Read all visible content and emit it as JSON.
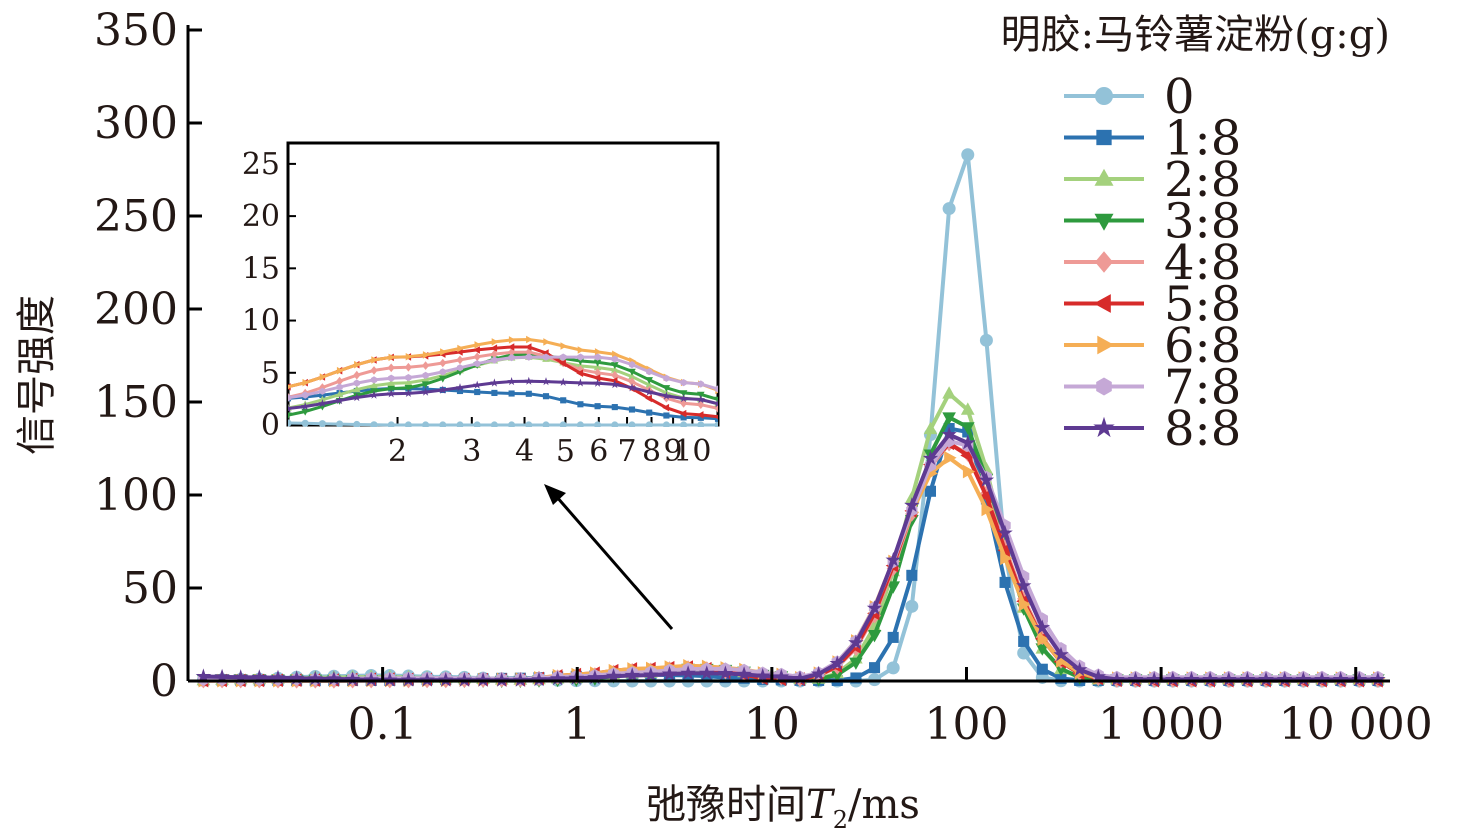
{
  "chart_data": {
    "type": "line",
    "xlabel": {
      "main": "弛豫时间",
      "var": "T",
      "sub": "2",
      "unit": "/ms"
    },
    "ylabel": "信号强度",
    "x_scale": "log",
    "xlim": [
      0.01,
      15000
    ],
    "ylim": [
      0,
      350
    ],
    "x_ticks": [
      {
        "v": 0.1,
        "label": "0.1"
      },
      {
        "v": 1,
        "label": "1"
      },
      {
        "v": 10,
        "label": "10"
      },
      {
        "v": 100,
        "label": "100"
      },
      {
        "v": 1000,
        "label": "1 000"
      },
      {
        "v": 10000,
        "label": "10 000"
      }
    ],
    "y_ticks": [
      {
        "v": 0,
        "label": "0"
      },
      {
        "v": 50,
        "label": "50"
      },
      {
        "v": 100,
        "label": "100"
      },
      {
        "v": 150,
        "label": "150"
      },
      {
        "v": 200,
        "label": "200"
      },
      {
        "v": 250,
        "label": "250"
      },
      {
        "v": 300,
        "label": "300"
      },
      {
        "v": 350,
        "label": "350"
      }
    ],
    "legend_title": "明胶:马铃薯淀粉(g:g)",
    "legend_position": "top-right",
    "series": [
      {
        "name": "0",
        "color": "#93c2d8",
        "marker": "circle",
        "small": [
          0.3,
          0.9,
          2.5,
          3.0,
          2.2,
          1.0,
          0.2,
          0,
          0,
          0,
          0,
          0
        ],
        "peak_x": 95,
        "peak_y": 290,
        "width": 0.13
      },
      {
        "name": "1:8",
        "color": "#2c72b0",
        "marker": "square",
        "small": [
          0.5,
          0.4,
          0.2,
          0.3,
          0.8,
          1.5,
          2.5,
          3.5,
          3.0,
          1.8,
          0.7,
          0.3
        ],
        "peak_x": 90,
        "peak_y": 140,
        "width": 0.175
      },
      {
        "name": "2:8",
        "color": "#a4d17d",
        "marker": "triangle-up",
        "small": [
          0.3,
          0.8,
          1.8,
          2.2,
          1.5,
          0.6,
          1.5,
          4.0,
          6.5,
          5.5,
          2.5,
          0.8
        ],
        "peak_x": 85,
        "peak_y": 155,
        "width": 0.22
      },
      {
        "name": "3:8",
        "color": "#2e9a3e",
        "marker": "triangle-down",
        "small": [
          1.0,
          1.0,
          0.8,
          0.3,
          0.2,
          0.2,
          0.8,
          3.5,
          6.8,
          6.0,
          3.0,
          1.0
        ],
        "peak_x": 87,
        "peak_y": 143,
        "width": 0.22
      },
      {
        "name": "4:8",
        "color": "#ee9a96",
        "marker": "diamond",
        "small": [
          0.2,
          0.2,
          0.1,
          0.2,
          0.3,
          0.8,
          2.5,
          5.5,
          7.0,
          5.0,
          2.0,
          0.5
        ],
        "peak_x": 85,
        "peak_y": 128,
        "width": 0.25
      },
      {
        "name": "5:8",
        "color": "#d72b2a",
        "marker": "triangle-left",
        "small": [
          0.2,
          0.3,
          0.5,
          1.0,
          0.8,
          0.6,
          3.5,
          6.5,
          7.5,
          4.5,
          1.0,
          0.2
        ],
        "peak_x": 84,
        "peak_y": 128,
        "width": 0.25
      },
      {
        "name": "6:8",
        "color": "#f5ae55",
        "marker": "triangle-right",
        "small": [
          0.2,
          0.2,
          0.2,
          0.3,
          0.4,
          1.0,
          3.5,
          6.5,
          8.2,
          7.0,
          4.0,
          1.5
        ],
        "peak_x": 82,
        "peak_y": 120,
        "width": 0.26
      },
      {
        "name": "7:8",
        "color": "#c5a8d6",
        "marker": "hexagon",
        "small": [
          0.8,
          0.8,
          1.0,
          1.5,
          1.6,
          1.2,
          2.5,
          4.5,
          6.5,
          6.5,
          4.0,
          2.0
        ],
        "peak_x": 88,
        "peak_y": 130,
        "width": 0.27
      },
      {
        "name": "8:8",
        "color": "#5e3a92",
        "marker": "star",
        "small": [
          2.5,
          2.0,
          1.2,
          0.5,
          0.5,
          0.4,
          1.5,
          3.0,
          4.2,
          4.0,
          2.5,
          0.8
        ],
        "peak_x": 86,
        "peak_y": 133,
        "width": 0.26
      }
    ],
    "small_x": [
      0.01,
      0.02,
      0.05,
      0.1,
      0.2,
      0.5,
      1,
      2,
      4,
      6,
      10,
      15
    ],
    "inset": {
      "xlim": [
        1.1,
        11.5
      ],
      "ylim": [
        0,
        27
      ],
      "x_ticks": [
        {
          "v": 2,
          "label": "2"
        },
        {
          "v": 3,
          "label": "3"
        },
        {
          "v": 4,
          "label": "4"
        },
        {
          "v": 5,
          "label": "5"
        },
        {
          "v": 6,
          "label": "6"
        },
        {
          "v": 7,
          "label": "7"
        },
        {
          "v": 8,
          "label": "8"
        },
        {
          "v": 9,
          "label": "9"
        },
        {
          "v": 10,
          "label": "10"
        }
      ],
      "y_ticks": [
        {
          "v": 0,
          "label": "0"
        },
        {
          "v": 5,
          "label": "5"
        },
        {
          "v": 10,
          "label": "10"
        },
        {
          "v": 15,
          "label": "15"
        },
        {
          "v": 20,
          "label": "20"
        },
        {
          "v": 25,
          "label": "25"
        }
      ]
    }
  }
}
